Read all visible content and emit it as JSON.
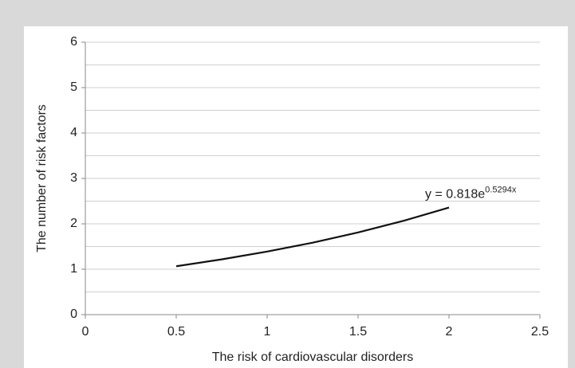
{
  "chart_data": {
    "type": "line",
    "xlabel": "The risk of cardiovascular disorders",
    "ylabel": "The number of risk factors",
    "x": [
      0.5,
      0.75,
      1,
      1.25,
      1.5,
      1.75,
      2
    ],
    "series": [
      {
        "color": "#111111",
        "values": [
          1.066,
          1.217,
          1.389,
          1.585,
          1.81,
          2.066,
          2.358
        ]
      }
    ],
    "xlim": [
      0,
      2.5
    ],
    "xticks": [
      0,
      0.5,
      1,
      1.5,
      2,
      2.5
    ],
    "ylim": [
      0,
      6
    ],
    "yticks": [
      0,
      1,
      2,
      3,
      4,
      5,
      6
    ],
    "minor_yticks": [
      0.5,
      1.5,
      2.5,
      3.5,
      4.5,
      5.5
    ],
    "grid": true,
    "annotation": {
      "text": "y = 0.818e",
      "superscript": "0.5294x",
      "x": 2,
      "y": 2.358
    }
  }
}
